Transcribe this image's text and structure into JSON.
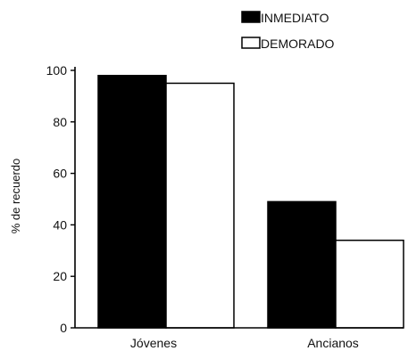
{
  "chart_data": {
    "type": "bar",
    "categories": [
      "Jóvenes",
      "Ancianos"
    ],
    "series": [
      {
        "name": "INMEDIATO",
        "values": [
          98,
          49
        ],
        "color": "#000000"
      },
      {
        "name": "DEMORADO",
        "values": [
          95,
          34
        ],
        "color": "#ffffff"
      }
    ],
    "xlabel": "",
    "ylabel": "% de recuerdo",
    "ylim": [
      0,
      100
    ],
    "yticks": [
      0,
      20,
      40,
      60,
      80,
      100
    ],
    "grid": false,
    "legend_position": "top-right"
  }
}
